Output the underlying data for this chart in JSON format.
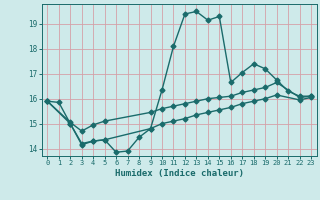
{
  "background_color": "#ceeaea",
  "grid_color": "#d4a0a8",
  "line_color": "#1a6b6b",
  "marker": "D",
  "markersize": 2.5,
  "linewidth": 1.0,
  "xlabel": "Humidex (Indice chaleur)",
  "xlim": [
    -0.5,
    23.5
  ],
  "ylim": [
    13.7,
    19.8
  ],
  "yticks": [
    14,
    15,
    16,
    17,
    18,
    19
  ],
  "xticks": [
    0,
    1,
    2,
    3,
    4,
    5,
    6,
    7,
    8,
    9,
    10,
    11,
    12,
    13,
    14,
    15,
    16,
    17,
    18,
    19,
    20,
    21,
    22,
    23
  ],
  "line1_x": [
    0,
    1,
    2,
    3,
    4,
    5,
    6,
    7,
    8,
    9,
    10,
    11,
    12,
    13,
    14,
    15,
    16,
    17,
    18,
    19,
    20,
    21,
    22,
    23
  ],
  "line1_y": [
    15.9,
    15.85,
    15.0,
    14.15,
    14.3,
    14.35,
    13.85,
    13.9,
    14.45,
    14.8,
    16.35,
    18.1,
    19.4,
    19.5,
    19.15,
    19.3,
    16.65,
    17.05,
    17.4,
    17.2,
    16.75,
    16.3,
    16.1,
    16.1
  ],
  "line2_x": [
    0,
    2,
    3,
    4,
    5,
    9,
    10,
    11,
    12,
    13,
    14,
    15,
    16,
    17,
    18,
    19,
    20,
    22,
    23
  ],
  "line2_y": [
    15.9,
    15.05,
    14.7,
    14.95,
    15.1,
    15.45,
    15.6,
    15.7,
    15.8,
    15.9,
    16.0,
    16.05,
    16.1,
    16.25,
    16.35,
    16.45,
    16.65,
    16.05,
    16.1
  ],
  "line3_x": [
    0,
    2,
    3,
    4,
    5,
    9,
    10,
    11,
    12,
    13,
    14,
    15,
    16,
    17,
    18,
    19,
    20,
    22,
    23
  ],
  "line3_y": [
    15.9,
    15.0,
    14.2,
    14.3,
    14.35,
    14.8,
    15.0,
    15.1,
    15.2,
    15.35,
    15.45,
    15.55,
    15.65,
    15.8,
    15.9,
    16.0,
    16.15,
    15.95,
    16.05
  ]
}
